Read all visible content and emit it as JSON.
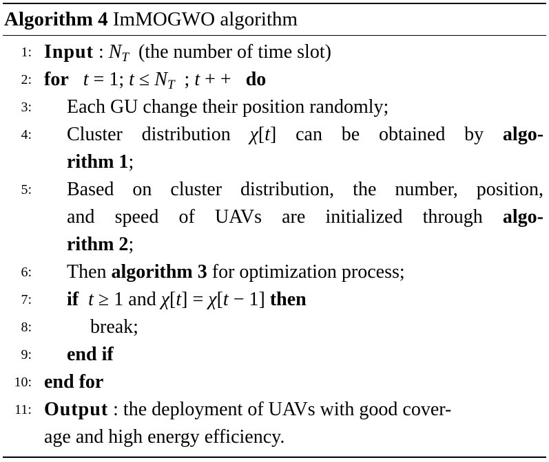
{
  "caption": {
    "label": "Algorithm 4",
    "title": "ImMOGWO algorithm"
  },
  "lines": [
    {
      "no": "1:",
      "kw": "Input",
      "rest": " : "
    },
    {
      "no": "2:",
      "kw": "for",
      "kw2": "do"
    },
    {
      "no": "3:",
      "text": "Each GU change their position randomly;"
    },
    {
      "no": "4:",
      "text1": "Cluster distribution",
      "text2": "can be obtained by",
      "bold": "algo-",
      "bold2": "rithm 1",
      "tail": ";"
    },
    {
      "no": "5:",
      "text": "Based on cluster distribution, the number, position,",
      "text2": "and speed of UAVs are initialized through",
      "bold": "algo-",
      "bold2": "rithm 2",
      "tail": ";"
    },
    {
      "no": "6:",
      "pre": "Then",
      "bold": "algorithm 3",
      "post": "for optimization process;"
    },
    {
      "no": "7:",
      "kw": "if",
      "mid": "and",
      "kw2": "then"
    },
    {
      "no": "8:",
      "text": "break;"
    },
    {
      "no": "9:",
      "kw": "end if"
    },
    {
      "no": "10:",
      "kw": "end for"
    },
    {
      "no": "11:",
      "kw": "Output",
      "text": " : the deployment of UAVs with good cover-",
      "text2": "age and high energy efficiency."
    }
  ],
  "input_desc": "(the number of time slot)"
}
